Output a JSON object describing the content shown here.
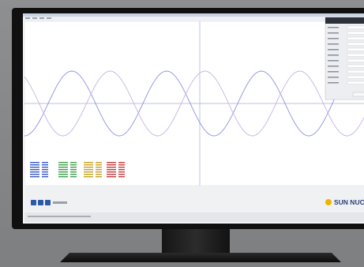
{
  "brand": "SUN NUCLEA"
}
